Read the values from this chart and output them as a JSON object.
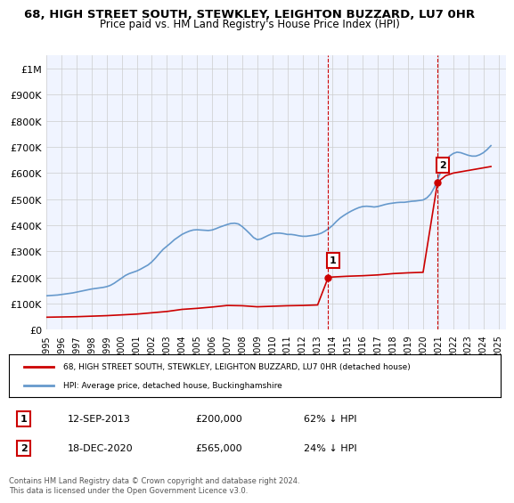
{
  "title": "68, HIGH STREET SOUTH, STEWKLEY, LEIGHTON BUZZARD, LU7 0HR",
  "subtitle": "Price paid vs. HM Land Registry's House Price Index (HPI)",
  "ylabel": "",
  "xlabel": "",
  "ylim": [
    0,
    1050000
  ],
  "yticks": [
    0,
    100000,
    200000,
    300000,
    400000,
    500000,
    600000,
    700000,
    800000,
    900000,
    1000000
  ],
  "ytick_labels": [
    "£0",
    "£100K",
    "£200K",
    "£300K",
    "£400K",
    "£500K",
    "£600K",
    "£700K",
    "£800K",
    "£900K",
    "£1M"
  ],
  "hpi_color": "#6699cc",
  "price_color": "#cc0000",
  "vline_color": "#cc0000",
  "background_color": "#ffffff",
  "grid_color": "#cccccc",
  "plot_bg_color": "#f0f4ff",
  "transaction1": {
    "date": "12-SEP-2013",
    "price": 200000,
    "label": "1",
    "year": 2013.7
  },
  "transaction2": {
    "date": "18-DEC-2020",
    "price": 565000,
    "label": "2",
    "year": 2020.96
  },
  "legend_line1": "68, HIGH STREET SOUTH, STEWKLEY, LEIGHTON BUZZARD, LU7 0HR (detached house)",
  "legend_line2": "HPI: Average price, detached house, Buckinghamshire",
  "footnote": "Contains HM Land Registry data © Crown copyright and database right 2024.\nThis data is licensed under the Open Government Licence v3.0.",
  "hpi_years": [
    1995.0,
    1995.25,
    1995.5,
    1995.75,
    1996.0,
    1996.25,
    1996.5,
    1996.75,
    1997.0,
    1997.25,
    1997.5,
    1997.75,
    1998.0,
    1998.25,
    1998.5,
    1998.75,
    1999.0,
    1999.25,
    1999.5,
    1999.75,
    2000.0,
    2000.25,
    2000.5,
    2000.75,
    2001.0,
    2001.25,
    2001.5,
    2001.75,
    2002.0,
    2002.25,
    2002.5,
    2002.75,
    2003.0,
    2003.25,
    2003.5,
    2003.75,
    2004.0,
    2004.25,
    2004.5,
    2004.75,
    2005.0,
    2005.25,
    2005.5,
    2005.75,
    2006.0,
    2006.25,
    2006.5,
    2006.75,
    2007.0,
    2007.25,
    2007.5,
    2007.75,
    2008.0,
    2008.25,
    2008.5,
    2008.75,
    2009.0,
    2009.25,
    2009.5,
    2009.75,
    2010.0,
    2010.25,
    2010.5,
    2010.75,
    2011.0,
    2011.25,
    2011.5,
    2011.75,
    2012.0,
    2012.25,
    2012.5,
    2012.75,
    2013.0,
    2013.25,
    2013.5,
    2013.75,
    2014.0,
    2014.25,
    2014.5,
    2014.75,
    2015.0,
    2015.25,
    2015.5,
    2015.75,
    2016.0,
    2016.25,
    2016.5,
    2016.75,
    2017.0,
    2017.25,
    2017.5,
    2017.75,
    2018.0,
    2018.25,
    2018.5,
    2018.75,
    2019.0,
    2019.25,
    2019.5,
    2019.75,
    2020.0,
    2020.25,
    2020.5,
    2020.75,
    2021.0,
    2021.25,
    2021.5,
    2021.75,
    2022.0,
    2022.25,
    2022.5,
    2022.75,
    2023.0,
    2023.25,
    2023.5,
    2023.75,
    2024.0,
    2024.25,
    2024.5
  ],
  "hpi_values": [
    130000,
    131000,
    132000,
    133000,
    135000,
    137000,
    139000,
    141000,
    144000,
    147000,
    150000,
    153000,
    156000,
    158000,
    160000,
    162000,
    165000,
    170000,
    178000,
    188000,
    198000,
    208000,
    215000,
    220000,
    225000,
    232000,
    240000,
    248000,
    260000,
    275000,
    292000,
    308000,
    320000,
    332000,
    345000,
    355000,
    365000,
    372000,
    378000,
    382000,
    383000,
    382000,
    381000,
    380000,
    382000,
    387000,
    393000,
    398000,
    403000,
    407000,
    408000,
    405000,
    395000,
    382000,
    368000,
    353000,
    345000,
    348000,
    355000,
    362000,
    368000,
    370000,
    370000,
    368000,
    365000,
    365000,
    363000,
    360000,
    358000,
    358000,
    360000,
    362000,
    365000,
    370000,
    378000,
    388000,
    400000,
    415000,
    428000,
    438000,
    447000,
    455000,
    462000,
    468000,
    472000,
    473000,
    472000,
    470000,
    472000,
    476000,
    480000,
    483000,
    485000,
    487000,
    488000,
    488000,
    490000,
    492000,
    493000,
    495000,
    497000,
    505000,
    520000,
    545000,
    580000,
    615000,
    645000,
    665000,
    675000,
    680000,
    678000,
    673000,
    668000,
    665000,
    665000,
    670000,
    678000,
    690000,
    705000
  ],
  "price_years_before1": [
    1995.0,
    1996.0,
    1997.0,
    1998.0,
    1999.0,
    2000.0,
    2001.0,
    2002.0,
    2003.0,
    2004.0,
    2005.0,
    2006.0,
    2007.0,
    2008.0,
    2009.0,
    2010.0,
    2011.0,
    2012.0,
    2013.0,
    2013.7
  ],
  "price_values_before1": [
    48000,
    49000,
    50000,
    52000,
    54000,
    57000,
    60000,
    65000,
    70000,
    78000,
    82000,
    87000,
    93000,
    92000,
    88000,
    90000,
    92000,
    93000,
    95000,
    200000
  ],
  "price_years_after1": [
    2013.7,
    2014.0,
    2015.0,
    2016.0,
    2017.0,
    2018.0,
    2019.0,
    2020.0,
    2020.96
  ],
  "price_values_after1": [
    200000,
    202000,
    205000,
    207000,
    210000,
    215000,
    218000,
    220000,
    565000
  ],
  "price_years_after2": [
    2020.96,
    2021.5,
    2022.0,
    2022.5,
    2023.0,
    2023.5,
    2024.0,
    2024.5
  ],
  "price_values_after2": [
    565000,
    590000,
    600000,
    605000,
    610000,
    615000,
    620000,
    625000
  ],
  "xtick_years": [
    1995,
    1996,
    1997,
    1998,
    1999,
    2000,
    2001,
    2002,
    2003,
    2004,
    2005,
    2006,
    2007,
    2008,
    2009,
    2010,
    2011,
    2012,
    2013,
    2014,
    2015,
    2016,
    2017,
    2018,
    2019,
    2020,
    2021,
    2022,
    2023,
    2024,
    2025
  ]
}
